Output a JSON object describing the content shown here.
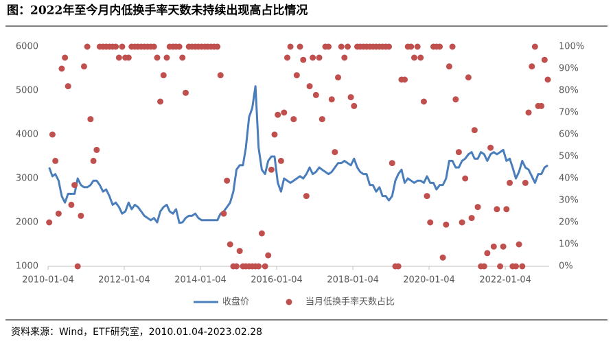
{
  "chart_data": {
    "type": "line-scatter",
    "title": "图：2022年至今月内低换手率天数未持续出现高占比情况",
    "source": "资料来源：Wind，ETF研究室，2010.01.04-2023.02.28",
    "xlim": [
      "2010-01-04",
      "2023-02-28"
    ],
    "xticks": [
      "2010-01-04",
      "2012-01-04",
      "2014-01-04",
      "2016-01-04",
      "2018-01-04",
      "2020-01-04",
      "2022-01-04"
    ],
    "ylim": [
      1000,
      6000
    ],
    "yticks": [
      1000,
      2000,
      3000,
      4000,
      5000,
      6000
    ],
    "y2lim": [
      0,
      100
    ],
    "y2ticks": [
      {
        "value": 0,
        "label": "0%"
      },
      {
        "value": 10,
        "label": "10%"
      },
      {
        "value": 20,
        "label": "20%"
      },
      {
        "value": 30,
        "label": "30%"
      },
      {
        "value": 40,
        "label": "40%"
      },
      {
        "value": 50,
        "label": "50%"
      },
      {
        "value": 60,
        "label": "60%"
      },
      {
        "value": 70,
        "label": "70%"
      },
      {
        "value": 80,
        "label": "80%"
      },
      {
        "value": 90,
        "label": "90%"
      },
      {
        "value": 100,
        "label": "100%"
      }
    ],
    "x": [
      "2010-01",
      "2010-02",
      "2010-03",
      "2010-04",
      "2010-05",
      "2010-06",
      "2010-07",
      "2010-08",
      "2010-09",
      "2010-10",
      "2010-11",
      "2010-12",
      "2011-01",
      "2011-02",
      "2011-03",
      "2011-04",
      "2011-05",
      "2011-06",
      "2011-07",
      "2011-08",
      "2011-09",
      "2011-10",
      "2011-11",
      "2011-12",
      "2012-01",
      "2012-02",
      "2012-03",
      "2012-04",
      "2012-05",
      "2012-06",
      "2012-07",
      "2012-08",
      "2012-09",
      "2012-10",
      "2012-11",
      "2012-12",
      "2013-01",
      "2013-02",
      "2013-03",
      "2013-04",
      "2013-05",
      "2013-06",
      "2013-07",
      "2013-08",
      "2013-09",
      "2013-10",
      "2013-11",
      "2013-12",
      "2014-01",
      "2014-02",
      "2014-03",
      "2014-04",
      "2014-05",
      "2014-06",
      "2014-07",
      "2014-08",
      "2014-09",
      "2014-10",
      "2014-11",
      "2014-12",
      "2015-01",
      "2015-02",
      "2015-03",
      "2015-04",
      "2015-05",
      "2015-06",
      "2015-07",
      "2015-08",
      "2015-09",
      "2015-10",
      "2015-11",
      "2015-12",
      "2016-01",
      "2016-02",
      "2016-03",
      "2016-04",
      "2016-05",
      "2016-06",
      "2016-07",
      "2016-08",
      "2016-09",
      "2016-10",
      "2016-11",
      "2016-12",
      "2017-01",
      "2017-02",
      "2017-03",
      "2017-04",
      "2017-05",
      "2017-06",
      "2017-07",
      "2017-08",
      "2017-09",
      "2017-10",
      "2017-11",
      "2017-12",
      "2018-01",
      "2018-02",
      "2018-03",
      "2018-04",
      "2018-05",
      "2018-06",
      "2018-07",
      "2018-08",
      "2018-09",
      "2018-10",
      "2018-11",
      "2018-12",
      "2019-01",
      "2019-02",
      "2019-03",
      "2019-04",
      "2019-05",
      "2019-06",
      "2019-07",
      "2019-08",
      "2019-09",
      "2019-10",
      "2019-11",
      "2019-12",
      "2020-01",
      "2020-02",
      "2020-03",
      "2020-04",
      "2020-05",
      "2020-06",
      "2020-07",
      "2020-08",
      "2020-09",
      "2020-10",
      "2020-11",
      "2020-12",
      "2021-01",
      "2021-02",
      "2021-03",
      "2021-04",
      "2021-05",
      "2021-06",
      "2021-07",
      "2021-08",
      "2021-09",
      "2021-10",
      "2021-11",
      "2021-12",
      "2022-01",
      "2022-02",
      "2022-03",
      "2022-04",
      "2022-05",
      "2022-06",
      "2022-07",
      "2022-08",
      "2022-09",
      "2022-10",
      "2022-11",
      "2022-12",
      "2023-01",
      "2023-02"
    ],
    "series": [
      {
        "name": "收盘价",
        "type": "line",
        "color": "#4a7ebb",
        "values": [
          3250,
          3050,
          3100,
          2950,
          2600,
          2450,
          2650,
          2650,
          2650,
          3000,
          2850,
          2800,
          2800,
          2850,
          2950,
          2950,
          2850,
          2700,
          2750,
          2600,
          2400,
          2450,
          2350,
          2200,
          2250,
          2450,
          2300,
          2400,
          2350,
          2250,
          2150,
          2100,
          2050,
          2100,
          2000,
          2250,
          2350,
          2400,
          2250,
          2200,
          2300,
          1990,
          2000,
          2100,
          2150,
          2150,
          2200,
          2100,
          2050,
          2050,
          2050,
          2050,
          2050,
          2050,
          2200,
          2250,
          2350,
          2450,
          2700,
          3200,
          3300,
          3300,
          3700,
          4400,
          4600,
          5100,
          3700,
          3200,
          3100,
          3400,
          3500,
          3500,
          2900,
          2700,
          3000,
          2950,
          2900,
          2950,
          3000,
          3050,
          3000,
          3100,
          3250,
          3100,
          3150,
          3250,
          3200,
          3150,
          3100,
          3150,
          3250,
          3350,
          3350,
          3400,
          3350,
          3300,
          3450,
          3250,
          3150,
          3100,
          3100,
          2850,
          2850,
          2700,
          2800,
          2600,
          2600,
          2500,
          2600,
          2950,
          3100,
          3200,
          2900,
          3000,
          2950,
          2900,
          2950,
          2950,
          2900,
          3050,
          2900,
          2900,
          2750,
          2850,
          2850,
          3000,
          3400,
          3400,
          3250,
          3250,
          3400,
          3450,
          3550,
          3600,
          3450,
          3450,
          3600,
          3550,
          3400,
          3550,
          3600,
          3550,
          3600,
          3650,
          3400,
          3450,
          3250,
          3000,
          3150,
          3400,
          3250,
          3200,
          3050,
          2900,
          3100,
          3100,
          3250,
          3300
        ]
      },
      {
        "name": "当月低换手率天数占比",
        "type": "scatter",
        "axis": "y2",
        "color": "#c0504d",
        "values": [
          20,
          60,
          48,
          24,
          90,
          95,
          82,
          28,
          37,
          0,
          23,
          91,
          100,
          67,
          48,
          53,
          100,
          100,
          100,
          100,
          100,
          100,
          95,
          100,
          95,
          95,
          100,
          100,
          100,
          100,
          100,
          100,
          100,
          100,
          95,
          75,
          87,
          95,
          100,
          100,
          100,
          100,
          95,
          79,
          100,
          100,
          100,
          100,
          100,
          100,
          100,
          100,
          100,
          100,
          87,
          24,
          39,
          10,
          0,
          0,
          7,
          0,
          0,
          0,
          0,
          0,
          0,
          15,
          0,
          5,
          44,
          60,
          69,
          48,
          70,
          95,
          100,
          67,
          87,
          100,
          94,
          32,
          82,
          95,
          78,
          95,
          67,
          100,
          100,
          76,
          52,
          86,
          100,
          95,
          100,
          77,
          73,
          100,
          100,
          100,
          100,
          100,
          100,
          100,
          100,
          100,
          100,
          100,
          47,
          0,
          0,
          85,
          85,
          100,
          100,
          95,
          100,
          95,
          75,
          32,
          20,
          100,
          100,
          100,
          4,
          19,
          91,
          100,
          76,
          52,
          20,
          40,
          86,
          22,
          62,
          27,
          0,
          0,
          6,
          54,
          9,
          26,
          0,
          9,
          26,
          38,
          0,
          0,
          10,
          0,
          38,
          70,
          91,
          100,
          73,
          73,
          94,
          85
        ]
      }
    ]
  }
}
